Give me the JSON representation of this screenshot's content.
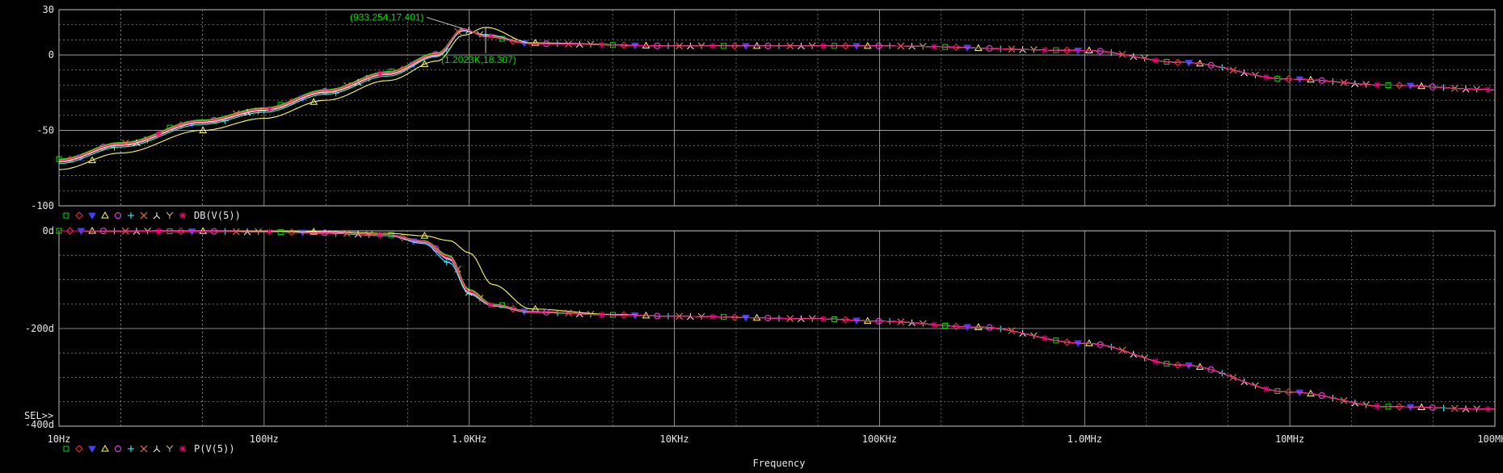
{
  "chart_data": [
    {
      "type": "line",
      "title": "",
      "x_scale": "log",
      "xlim": [
        10,
        100000000
      ],
      "ylim": [
        -100,
        30
      ],
      "y_ticks": [
        "30",
        "0",
        "-50",
        "-100"
      ],
      "grid": true,
      "legend_label": "DB(V(5))",
      "legend_symbols": [
        "□",
        "◇",
        "▽",
        "△",
        "○",
        "+",
        "×",
        "⅄",
        "Y",
        "∗"
      ],
      "x_hz": [
        10,
        20,
        50,
        100,
        200,
        400,
        700,
        933.254,
        1202.3,
        2000,
        10000,
        100000,
        1000000,
        3000000,
        10000000,
        30000000,
        100000000
      ],
      "series": [
        {
          "color": "#00e000",
          "marker": "square",
          "values": [
            -69,
            -58,
            -43,
            -35,
            -23,
            -11,
            1.5,
            17.4,
            12,
            7.5,
            6,
            6,
            3,
            -5,
            -16,
            -20,
            -23
          ]
        },
        {
          "color": "#ff3030",
          "marker": "diamond",
          "values": [
            -70,
            -59,
            -44,
            -36,
            -24,
            -12,
            0.5,
            17,
            12.5,
            7.5,
            6,
            6,
            3,
            -5,
            -16,
            -20,
            -23
          ]
        },
        {
          "color": "#4040ff",
          "marker": "triangle-down",
          "values": [
            -71,
            -60,
            -45,
            -37,
            -25,
            -13,
            -0.5,
            16.5,
            13,
            7.6,
            6,
            6,
            3,
            -5,
            -16,
            -20,
            -23
          ]
        },
        {
          "color": "#ffff60",
          "marker": "triangle-up",
          "values": [
            -76,
            -65,
            -50,
            -42,
            -30,
            -17,
            -4,
            13,
            18.3,
            8,
            6,
            6,
            3,
            -5,
            -16,
            -20,
            -23
          ]
        },
        {
          "color": "#ff40ff",
          "marker": "circle",
          "values": [
            -70,
            -59,
            -44,
            -36,
            -24,
            -12,
            0.5,
            17,
            12.5,
            7.5,
            6,
            6,
            3,
            -5,
            -16,
            -20,
            -23
          ]
        },
        {
          "color": "#40ffff",
          "marker": "plus",
          "values": [
            -72,
            -61,
            -46,
            -38,
            -26,
            -14,
            -1,
            16,
            13.5,
            7.6,
            6,
            6,
            3,
            -5,
            -16,
            -20,
            -23
          ]
        },
        {
          "color": "#ff8040",
          "marker": "x",
          "values": [
            -69.5,
            -58.5,
            -43.5,
            -35.5,
            -23.5,
            -11.5,
            1,
            17.2,
            12.2,
            7.5,
            6,
            6,
            3,
            -5,
            -16,
            -20,
            -23
          ]
        },
        {
          "color": "#ffffff",
          "marker": "lambda",
          "values": [
            -70.5,
            -59.5,
            -44.5,
            -36.5,
            -24.5,
            -12.5,
            0,
            16.8,
            12.8,
            7.5,
            6,
            6,
            3,
            -5,
            -16,
            -20,
            -23
          ]
        },
        {
          "color": "#e0c080",
          "marker": "y",
          "values": [
            -71,
            -60,
            -45,
            -37,
            -25,
            -13,
            -0.3,
            16.6,
            13,
            7.6,
            6,
            6,
            3,
            -5,
            -16,
            -20,
            -23
          ]
        },
        {
          "color": "#ff0080",
          "marker": "asterisk",
          "values": [
            -70,
            -59,
            -44,
            -36,
            -24,
            -12,
            0.5,
            17,
            12.5,
            7.5,
            6,
            6,
            3,
            -5,
            -16,
            -20,
            -23
          ]
        }
      ],
      "annotations": [
        {
          "text": "(933.254,17.401)",
          "x": 933.254,
          "y": 17.401
        },
        {
          "text": "(1.2023K,18.307)",
          "x": 1202.3,
          "y": 18.307
        }
      ]
    },
    {
      "type": "line",
      "title": "",
      "x_scale": "log",
      "xlim": [
        10,
        100000000
      ],
      "ylim": [
        -400,
        0
      ],
      "y_ticks": [
        "0d",
        "-200d",
        "-400d"
      ],
      "x_ticks": [
        "10Hz",
        "100Hz",
        "1.0KHz",
        "10KHz",
        "100KHz",
        "1.0MHz",
        "10MHz",
        "100MHz"
      ],
      "xlabel": "Frequency",
      "grid": true,
      "sel_label": "SEL>>",
      "legend_label": "P(V(5))",
      "legend_symbols": [
        "□",
        "◇",
        "▽",
        "△",
        "○",
        "+",
        "×",
        "⅄",
        "Y",
        "∗"
      ],
      "x_hz": [
        10,
        50,
        100,
        200,
        400,
        600,
        800,
        1000,
        1300,
        2000,
        5000,
        10000,
        50000,
        100000,
        300000,
        1000000,
        3000000,
        10000000,
        30000000,
        100000000
      ],
      "series": [
        {
          "color": "#00e000",
          "marker": "square",
          "values": [
            0,
            -1,
            -2,
            -4,
            -8,
            -20,
            -50,
            -120,
            -150,
            -165,
            -172,
            -175,
            -180,
            -185,
            -197,
            -230,
            -275,
            -330,
            -360,
            -365
          ]
        },
        {
          "color": "#ff3030",
          "marker": "diamond",
          "values": [
            0,
            -1,
            -2,
            -4,
            -9,
            -22,
            -55,
            -125,
            -152,
            -166,
            -172,
            -175,
            -180,
            -185,
            -197,
            -230,
            -275,
            -330,
            -360,
            -365
          ]
        },
        {
          "color": "#4040ff",
          "marker": "triangle-down",
          "values": [
            0,
            -1,
            -2,
            -4,
            -9,
            -24,
            -60,
            -128,
            -153,
            -166,
            -172,
            -175,
            -180,
            -185,
            -197,
            -230,
            -275,
            -330,
            -360,
            -365
          ]
        },
        {
          "color": "#ffff60",
          "marker": "triangle-up",
          "values": [
            0,
            -0.5,
            -1,
            -2,
            -5,
            -10,
            -20,
            -45,
            -110,
            -160,
            -171,
            -175,
            -180,
            -185,
            -197,
            -230,
            -275,
            -330,
            -360,
            -365
          ]
        },
        {
          "color": "#ff40ff",
          "marker": "circle",
          "values": [
            0,
            -1,
            -2,
            -4,
            -9,
            -22,
            -55,
            -125,
            -152,
            -166,
            -172,
            -175,
            -180,
            -185,
            -197,
            -230,
            -275,
            -330,
            -360,
            -365
          ]
        },
        {
          "color": "#40ffff",
          "marker": "plus",
          "values": [
            0,
            -1,
            -2,
            -5,
            -10,
            -26,
            -65,
            -130,
            -154,
            -167,
            -172,
            -175,
            -180,
            -185,
            -197,
            -230,
            -275,
            -330,
            -360,
            -365
          ]
        },
        {
          "color": "#ff8040",
          "marker": "x",
          "values": [
            0,
            -1,
            -2,
            -4,
            -8,
            -21,
            -52,
            -122,
            -151,
            -165,
            -172,
            -175,
            -180,
            -185,
            -197,
            -230,
            -275,
            -330,
            -360,
            -365
          ]
        },
        {
          "color": "#ffffff",
          "marker": "lambda",
          "values": [
            0,
            -1,
            -2,
            -4,
            -9,
            -23,
            -57,
            -126,
            -152,
            -166,
            -172,
            -175,
            -180,
            -185,
            -197,
            -230,
            -275,
            -330,
            -360,
            -365
          ]
        },
        {
          "color": "#e0c080",
          "marker": "y",
          "values": [
            0,
            -1,
            -2,
            -4,
            -9,
            -22,
            -58,
            -127,
            -153,
            -166,
            -172,
            -175,
            -180,
            -185,
            -197,
            -230,
            -275,
            -330,
            -360,
            -365
          ]
        },
        {
          "color": "#ff0080",
          "marker": "asterisk",
          "values": [
            0,
            -1,
            -2,
            -4,
            -9,
            -22,
            -55,
            -125,
            -152,
            -166,
            -172,
            -175,
            -180,
            -185,
            -197,
            -230,
            -275,
            -330,
            -360,
            -365
          ]
        }
      ]
    }
  ]
}
